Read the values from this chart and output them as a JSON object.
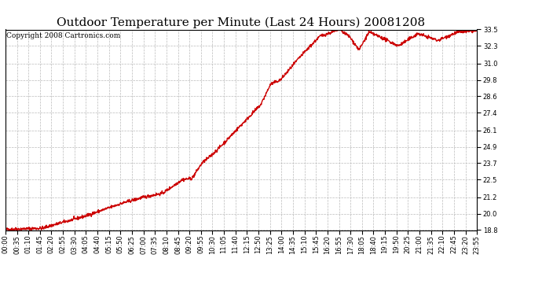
{
  "title": "Outdoor Temperature per Minute (Last 24 Hours) 20081208",
  "copyright_text": "Copyright 2008 Cartronics.com",
  "line_color": "#cc0000",
  "background_color": "#ffffff",
  "plot_bg_color": "#ffffff",
  "grid_color": "#bbbbbb",
  "ylim": [
    18.8,
    33.5
  ],
  "yticks": [
    18.8,
    20.0,
    21.2,
    22.5,
    23.7,
    24.9,
    26.1,
    27.4,
    28.6,
    29.8,
    31.0,
    32.3,
    33.5
  ],
  "xtick_labels": [
    "00:00",
    "00:35",
    "01:10",
    "01:45",
    "02:20",
    "02:55",
    "03:30",
    "04:05",
    "04:40",
    "05:15",
    "05:50",
    "06:25",
    "07:00",
    "07:35",
    "08:10",
    "08:45",
    "09:20",
    "09:55",
    "10:30",
    "11:05",
    "11:40",
    "12:15",
    "12:50",
    "13:25",
    "14:00",
    "14:35",
    "15:10",
    "15:45",
    "16:20",
    "16:55",
    "17:30",
    "18:05",
    "18:40",
    "19:15",
    "19:50",
    "20:25",
    "21:00",
    "21:35",
    "22:10",
    "22:45",
    "23:20",
    "23:55"
  ],
  "title_fontsize": 11,
  "copyright_fontsize": 6.5,
  "tick_fontsize": 6,
  "line_width": 1.0
}
